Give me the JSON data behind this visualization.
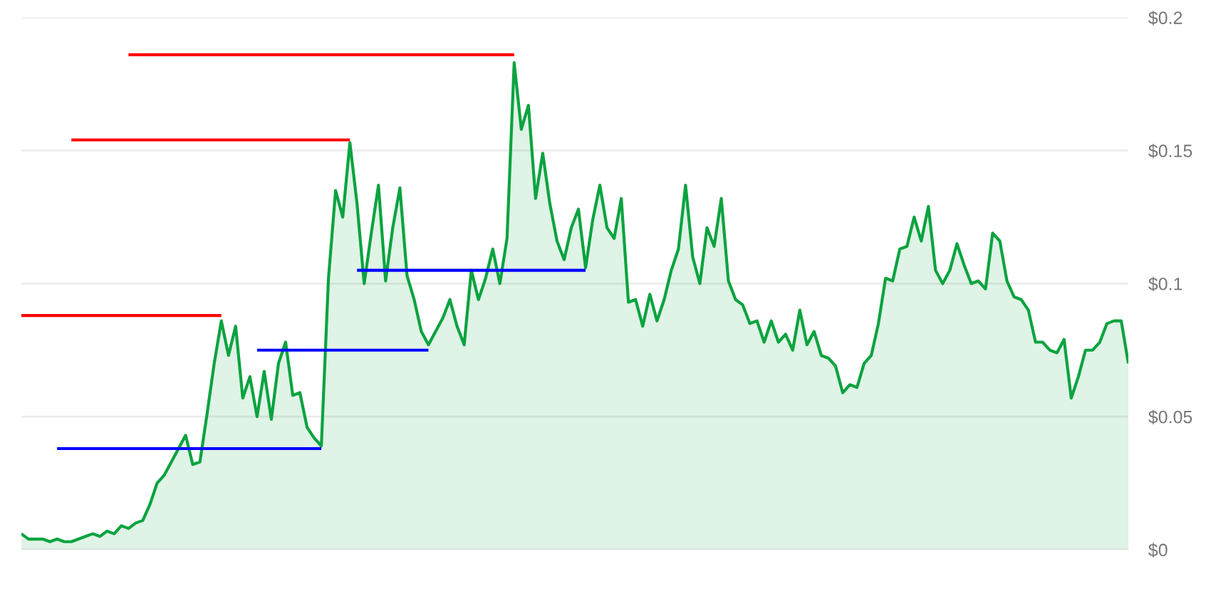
{
  "chart_data": {
    "type": "area",
    "categories": [
      null,
      null,
      null,
      null,
      null,
      null,
      null,
      null,
      null,
      null,
      null,
      null,
      null,
      null,
      null,
      null,
      null,
      null,
      null,
      null,
      null,
      null,
      null,
      null,
      null,
      null,
      null,
      null,
      null,
      null,
      null,
      null,
      null,
      null,
      null,
      null,
      null,
      null,
      null,
      null,
      null,
      null,
      null,
      null,
      null,
      null,
      null,
      null,
      null,
      null,
      null,
      null,
      null,
      null,
      null,
      null,
      null,
      null,
      null,
      null,
      null,
      null,
      null,
      null,
      null,
      null,
      null,
      null,
      null,
      null,
      null,
      null,
      null,
      null,
      null,
      null,
      null,
      null,
      null,
      null,
      null,
      null,
      null,
      null,
      null,
      null,
      null,
      null,
      null,
      null,
      null,
      null,
      null,
      null,
      null,
      null,
      null,
      null,
      null,
      null,
      null,
      null,
      null,
      null,
      null,
      null,
      null,
      null,
      null,
      null,
      null,
      null,
      null,
      null,
      null,
      null,
      null,
      null,
      null,
      null,
      null,
      null,
      null,
      null,
      null,
      null,
      null,
      null,
      null,
      null,
      null,
      null,
      null,
      null,
      null,
      null,
      null,
      null,
      null,
      null,
      null,
      null,
      null,
      null,
      null,
      null,
      null,
      null,
      null,
      null,
      null,
      null,
      null,
      null,
      null,
      null
    ],
    "series": [
      {
        "color": "#0aa33f",
        "values": [
          0.006,
          0.004,
          0.004,
          0.004,
          0.003,
          0.004,
          0.003,
          0.003,
          0.004,
          0.005,
          0.006,
          0.005,
          0.007,
          0.006,
          0.009,
          0.008,
          0.01,
          0.011,
          0.017,
          0.025,
          0.028,
          0.033,
          0.038,
          0.043,
          0.032,
          0.033,
          0.051,
          0.07,
          0.086,
          0.073,
          0.084,
          0.057,
          0.065,
          0.05,
          0.067,
          0.049,
          0.07,
          0.078,
          0.058,
          0.059,
          0.046,
          0.042,
          0.039,
          0.102,
          0.135,
          0.125,
          0.153,
          0.13,
          0.1,
          0.119,
          0.137,
          0.101,
          0.121,
          0.136,
          0.103,
          0.094,
          0.082,
          0.077,
          0.082,
          0.087,
          0.094,
          0.084,
          0.077,
          0.105,
          0.094,
          0.102,
          0.113,
          0.1,
          0.117,
          0.183,
          0.158,
          0.167,
          0.132,
          0.149,
          0.13,
          0.116,
          0.109,
          0.121,
          0.128,
          0.106,
          0.124,
          0.137,
          0.121,
          0.117,
          0.132,
          0.093,
          0.094,
          0.084,
          0.096,
          0.086,
          0.094,
          0.105,
          0.113,
          0.137,
          0.11,
          0.1,
          0.121,
          0.114,
          0.132,
          0.101,
          0.094,
          0.092,
          0.085,
          0.086,
          0.078,
          0.086,
          0.078,
          0.081,
          0.075,
          0.09,
          0.077,
          0.082,
          0.073,
          0.072,
          0.069,
          0.059,
          0.062,
          0.061,
          0.07,
          0.073,
          0.085,
          0.102,
          0.101,
          0.113,
          0.114,
          0.125,
          0.116,
          0.129,
          0.105,
          0.1,
          0.105,
          0.115,
          0.107,
          0.1,
          0.101,
          0.098,
          0.119,
          0.116,
          0.101,
          0.095,
          0.094,
          0.09,
          0.078,
          0.078,
          0.075,
          0.074,
          0.079,
          0.057,
          0.065,
          0.075,
          0.075,
          0.078,
          0.085,
          0.086,
          0.086,
          0.07
        ]
      },
      {
        "type": "line",
        "color": "#ff0000",
        "values": [
          null,
          null,
          null,
          null,
          null,
          null,
          null,
          null,
          null,
          null,
          null,
          null,
          null,
          null,
          null,
          0.186,
          0.186,
          0.186,
          0.186,
          0.186,
          0.186,
          0.186,
          0.186,
          0.186,
          0.186,
          0.186,
          0.186,
          0.186,
          0.186,
          0.186,
          0.186,
          0.186,
          0.186,
          0.186,
          0.186,
          0.186,
          0.186,
          0.186,
          0.186,
          0.186,
          0.186,
          0.186,
          0.186,
          0.186,
          0.186,
          0.186,
          0.186,
          0.186,
          0.186,
          0.186,
          0.186,
          0.186,
          0.186,
          0.186,
          0.186,
          0.186,
          0.186,
          0.186,
          0.186,
          0.186,
          0.186,
          0.186,
          0.186,
          0.186,
          0.186,
          0.186,
          0.186,
          0.186,
          0.186,
          0.186,
          null,
          null,
          null,
          null,
          null,
          null,
          null,
          null,
          null,
          null,
          null,
          null,
          null,
          null,
          null,
          null,
          null,
          null,
          null,
          null,
          null,
          null,
          null,
          null,
          null,
          null,
          null,
          null,
          null,
          null,
          null,
          null,
          null,
          null,
          null,
          null,
          null,
          null,
          null,
          null,
          null,
          null,
          null,
          null,
          null,
          null,
          null,
          null,
          null,
          null,
          null,
          null,
          null,
          null,
          null,
          null,
          null,
          null,
          null,
          null,
          null,
          null,
          null,
          null,
          null,
          null,
          null,
          null,
          null,
          null,
          null,
          null,
          null,
          null,
          null,
          null,
          null,
          null,
          null,
          null,
          null,
          null,
          null,
          null,
          null,
          null
        ]
      },
      {
        "type": "line",
        "color": "#ff0000",
        "values": [
          null,
          null,
          null,
          null,
          null,
          null,
          null,
          0.154,
          0.154,
          0.154,
          0.154,
          0.154,
          0.154,
          0.154,
          0.154,
          0.154,
          0.154,
          0.154,
          0.154,
          0.154,
          0.154,
          0.154,
          0.154,
          0.154,
          0.154,
          0.154,
          0.154,
          0.154,
          0.154,
          0.154,
          0.154,
          0.154,
          0.154,
          0.154,
          0.154,
          0.154,
          0.154,
          0.154,
          0.154,
          0.154,
          0.154,
          0.154,
          0.154,
          0.154,
          0.154,
          0.154,
          0.154,
          null,
          null,
          null,
          null,
          null,
          null,
          null,
          null,
          null,
          null,
          null,
          null,
          null,
          null,
          null,
          null,
          null,
          null,
          null,
          null,
          null,
          null,
          null,
          null,
          null,
          null,
          null,
          null,
          null,
          null,
          null,
          null,
          null,
          null,
          null,
          null,
          null,
          null,
          null,
          null,
          null,
          null,
          null,
          null,
          null,
          null,
          null,
          null,
          null,
          null,
          null,
          null,
          null,
          null,
          null,
          null,
          null,
          null,
          null,
          null,
          null,
          null,
          null,
          null,
          null,
          null,
          null,
          null,
          null,
          null,
          null,
          null,
          null,
          null,
          null,
          null,
          null,
          null,
          null,
          null,
          null,
          null,
          null,
          null,
          null,
          null,
          null,
          null,
          null,
          null,
          null,
          null,
          null,
          null,
          null,
          null,
          null,
          null,
          null,
          null,
          null,
          null,
          null,
          null,
          null,
          null,
          null,
          null,
          null
        ]
      },
      {
        "type": "line",
        "color": "#ff0000",
        "values": [
          0.088,
          0.088,
          0.088,
          0.088,
          0.088,
          0.088,
          0.088,
          0.088,
          0.088,
          0.088,
          0.088,
          0.088,
          0.088,
          0.088,
          0.088,
          0.088,
          0.088,
          0.088,
          0.088,
          0.088,
          0.088,
          0.088,
          0.088,
          0.088,
          0.088,
          0.088,
          0.088,
          0.088,
          0.088,
          null,
          null,
          null,
          null,
          null,
          null,
          null,
          null,
          null,
          null,
          null,
          null,
          null,
          null,
          null,
          null,
          null,
          null,
          null,
          null,
          null,
          null,
          null,
          null,
          null,
          null,
          null,
          null,
          null,
          null,
          null,
          null,
          null,
          null,
          null,
          null,
          null,
          null,
          null,
          null,
          null,
          null,
          null,
          null,
          null,
          null,
          null,
          null,
          null,
          null,
          null,
          null,
          null,
          null,
          null,
          null,
          null,
          null,
          null,
          null,
          null,
          null,
          null,
          null,
          null,
          null,
          null,
          null,
          null,
          null,
          null,
          null,
          null,
          null,
          null,
          null,
          null,
          null,
          null,
          null,
          null,
          null,
          null,
          null,
          null,
          null,
          null,
          null,
          null,
          null,
          null,
          null,
          null,
          null,
          null,
          null,
          null,
          null,
          null,
          null,
          null,
          null,
          null,
          null,
          null,
          null,
          null,
          null,
          null,
          null,
          null,
          null,
          null,
          null,
          null,
          null,
          null,
          null,
          null,
          null,
          null,
          null,
          null,
          null,
          null,
          null,
          null
        ]
      },
      {
        "type": "line",
        "color": "#0000ff",
        "values": [
          null,
          null,
          null,
          null,
          null,
          0.038,
          0.038,
          0.038,
          0.038,
          0.038,
          0.038,
          0.038,
          0.038,
          0.038,
          0.038,
          0.038,
          0.038,
          0.038,
          0.038,
          0.038,
          0.038,
          0.038,
          0.038,
          0.038,
          0.038,
          0.038,
          0.038,
          0.038,
          0.038,
          0.038,
          0.038,
          0.038,
          0.038,
          0.038,
          0.038,
          0.038,
          0.038,
          0.038,
          0.038,
          0.038,
          0.038,
          0.038,
          0.038,
          null,
          null,
          null,
          null,
          null,
          null,
          null,
          null,
          null,
          null,
          null,
          null,
          null,
          null,
          null,
          null,
          null,
          null,
          null,
          null,
          null,
          null,
          null,
          null,
          null,
          null,
          null,
          null,
          null,
          null,
          null,
          null,
          null,
          null,
          null,
          null,
          null,
          null,
          null,
          null,
          null,
          null,
          null,
          null,
          null,
          null,
          null,
          null,
          null,
          null,
          null,
          null,
          null,
          null,
          null,
          null,
          null,
          null,
          null,
          null,
          null,
          null,
          null,
          null,
          null,
          null,
          null,
          null,
          null,
          null,
          null,
          null,
          null,
          null,
          null,
          null,
          null,
          null,
          null,
          null,
          null,
          null,
          null,
          null,
          null,
          null,
          null,
          null,
          null,
          null,
          null,
          null,
          null,
          null,
          null,
          null,
          null,
          null,
          null,
          null,
          null,
          null,
          null,
          null,
          null,
          null,
          null,
          null,
          null,
          null,
          null,
          null,
          null
        ]
      },
      {
        "type": "line",
        "color": "#0000ff",
        "values": [
          null,
          null,
          null,
          null,
          null,
          null,
          null,
          null,
          null,
          null,
          null,
          null,
          null,
          null,
          null,
          null,
          null,
          null,
          null,
          null,
          null,
          null,
          null,
          null,
          null,
          null,
          null,
          null,
          null,
          null,
          null,
          null,
          null,
          0.075,
          0.075,
          0.075,
          0.075,
          0.075,
          0.075,
          0.075,
          0.075,
          0.075,
          0.075,
          0.075,
          0.075,
          0.075,
          0.075,
          0.075,
          0.075,
          0.075,
          0.075,
          0.075,
          0.075,
          0.075,
          0.075,
          0.075,
          0.075,
          0.075,
          null,
          null,
          null,
          null,
          null,
          null,
          null,
          null,
          null,
          null,
          null,
          null,
          null,
          null,
          null,
          null,
          null,
          null,
          null,
          null,
          null,
          null,
          null,
          null,
          null,
          null,
          null,
          null,
          null,
          null,
          null,
          null,
          null,
          null,
          null,
          null,
          null,
          null,
          null,
          null,
          null,
          null,
          null,
          null,
          null,
          null,
          null,
          null,
          null,
          null,
          null,
          null,
          null,
          null,
          null,
          null,
          null,
          null,
          null,
          null,
          null,
          null,
          null,
          null,
          null,
          null,
          null,
          null,
          null,
          null,
          null,
          null,
          null,
          null,
          null,
          null,
          null,
          null,
          null,
          null,
          null,
          null,
          null,
          null,
          null,
          null,
          null,
          null,
          null,
          null,
          null,
          null,
          null,
          null,
          null,
          null,
          null,
          null
        ]
      },
      {
        "type": "line",
        "color": "#0000ff",
        "values": [
          null,
          null,
          null,
          null,
          null,
          null,
          null,
          null,
          null,
          null,
          null,
          null,
          null,
          null,
          null,
          null,
          null,
          null,
          null,
          null,
          null,
          null,
          null,
          null,
          null,
          null,
          null,
          null,
          null,
          null,
          null,
          null,
          null,
          null,
          null,
          null,
          null,
          null,
          null,
          null,
          null,
          null,
          null,
          null,
          null,
          null,
          null,
          0.105,
          0.105,
          0.105,
          0.105,
          0.105,
          0.105,
          0.105,
          0.105,
          0.105,
          0.105,
          0.105,
          0.105,
          0.105,
          0.105,
          0.105,
          0.105,
          0.105,
          0.105,
          0.105,
          0.105,
          0.105,
          0.105,
          0.105,
          0.105,
          0.105,
          0.105,
          0.105,
          0.105,
          0.105,
          0.105,
          0.105,
          0.105,
          0.105,
          null,
          null,
          null,
          null,
          null,
          null,
          null,
          null,
          null,
          null,
          null,
          null,
          null,
          null,
          null,
          null,
          null,
          null,
          null,
          null,
          null,
          null,
          null,
          null,
          null,
          null,
          null,
          null,
          null,
          null,
          null,
          null,
          null,
          null,
          null,
          null,
          null,
          null,
          null,
          null,
          null,
          null,
          null,
          null,
          null,
          null,
          null,
          null,
          null,
          null,
          null,
          null,
          null,
          null,
          null,
          null,
          null,
          null,
          null,
          null,
          null,
          null,
          null,
          null,
          null,
          null,
          null,
          null,
          null,
          null,
          null,
          null,
          null,
          null,
          null,
          null
        ]
      }
    ],
    "ylim": [
      0,
      0.2
    ],
    "yticks": [
      {
        "value": 0,
        "label": "$0"
      },
      {
        "value": 0.05,
        "label": "$0.05"
      },
      {
        "value": 0.1,
        "label": "$0.1"
      },
      {
        "value": 0.15,
        "label": "$0.15"
      },
      {
        "value": 0.2,
        "label": "$0.2"
      }
    ],
    "grid": "y",
    "tick_labels": "y"
  }
}
